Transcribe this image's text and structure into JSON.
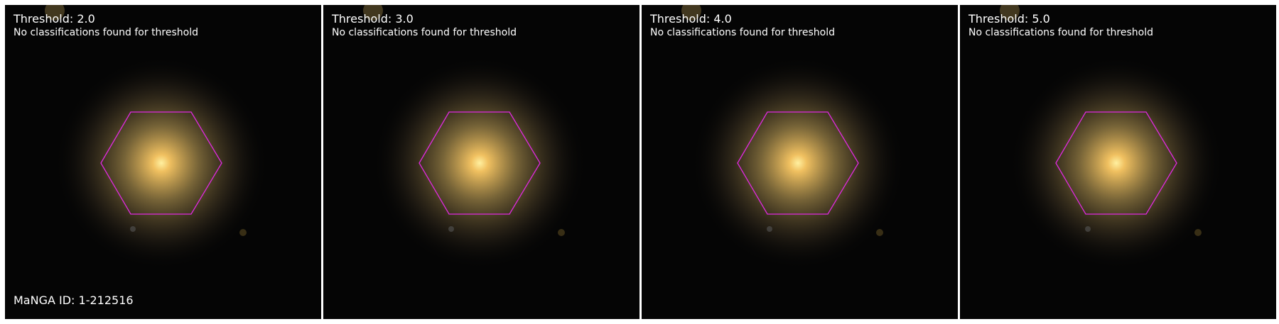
{
  "panels": [
    {
      "title": "Threshold: 2.0",
      "subtitle": "No classifications found for threshold"
    },
    {
      "title": "Threshold: 3.0",
      "subtitle": "No classifications found for threshold"
    },
    {
      "title": "Threshold: 4.0",
      "subtitle": "No classifications found for threshold"
    },
    {
      "title": "Threshold: 5.0",
      "subtitle": "No classifications found for threshold"
    }
  ],
  "manga_id": "MaNGA ID: 1-212516",
  "colors": {
    "hexagon": "#e02ae0",
    "text": "#ffffff",
    "background": "#050505",
    "galaxy_core": "#ffe07a",
    "galaxy_halo": "#8a7440"
  }
}
